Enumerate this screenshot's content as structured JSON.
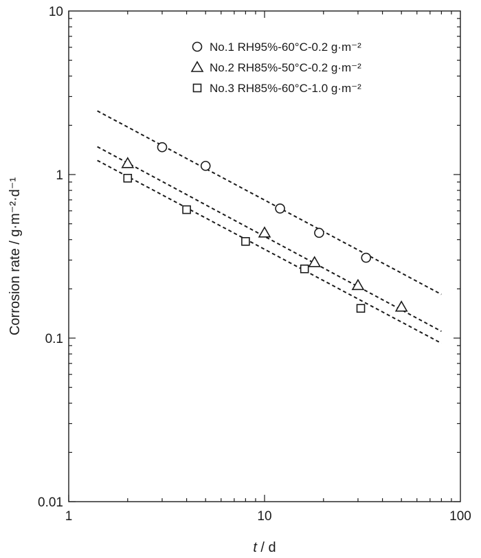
{
  "chart_data": {
    "type": "scatter",
    "xlabel_var": "t",
    "xlabel_unit": " / d",
    "ylabel": "Corrosion rate / g·m⁻²·d⁻¹",
    "x_scale": "log",
    "y_scale": "log",
    "xlim": [
      1,
      100
    ],
    "ylim": [
      0.01,
      10
    ],
    "x_ticks": [
      1,
      10,
      100
    ],
    "x_tick_labels": [
      "1",
      "10",
      "100"
    ],
    "y_ticks": [
      0.01,
      0.1,
      1,
      10
    ],
    "y_tick_labels": [
      "0.01",
      "0.1",
      "1",
      "10"
    ],
    "grid": false,
    "legend_position": "top-right",
    "series": [
      {
        "name": "No.1 RH95%-60°C-0.2 g·m⁻²",
        "marker": "circle",
        "x": [
          3,
          5,
          12,
          19,
          33
        ],
        "y": [
          1.47,
          1.13,
          0.62,
          0.44,
          0.31
        ],
        "fit": {
          "x_start": 1.4,
          "x_end": 80,
          "y_start": 2.45,
          "y_end": 0.185
        }
      },
      {
        "name": "No.2 RH85%-50°C-0.2 g·m⁻²",
        "marker": "triangle",
        "x": [
          2,
          10,
          18,
          30,
          50
        ],
        "y": [
          1.17,
          0.44,
          0.29,
          0.21,
          0.155
        ],
        "fit": {
          "x_start": 1.4,
          "x_end": 80,
          "y_start": 1.48,
          "y_end": 0.11
        }
      },
      {
        "name": "No.3 RH85%-60°C-1.0 g·m⁻²",
        "marker": "square",
        "x": [
          2,
          4,
          8,
          16,
          31
        ],
        "y": [
          0.95,
          0.61,
          0.39,
          0.265,
          0.152
        ],
        "fit": {
          "x_start": 1.4,
          "x_end": 80,
          "y_start": 1.22,
          "y_end": 0.093
        }
      }
    ]
  }
}
